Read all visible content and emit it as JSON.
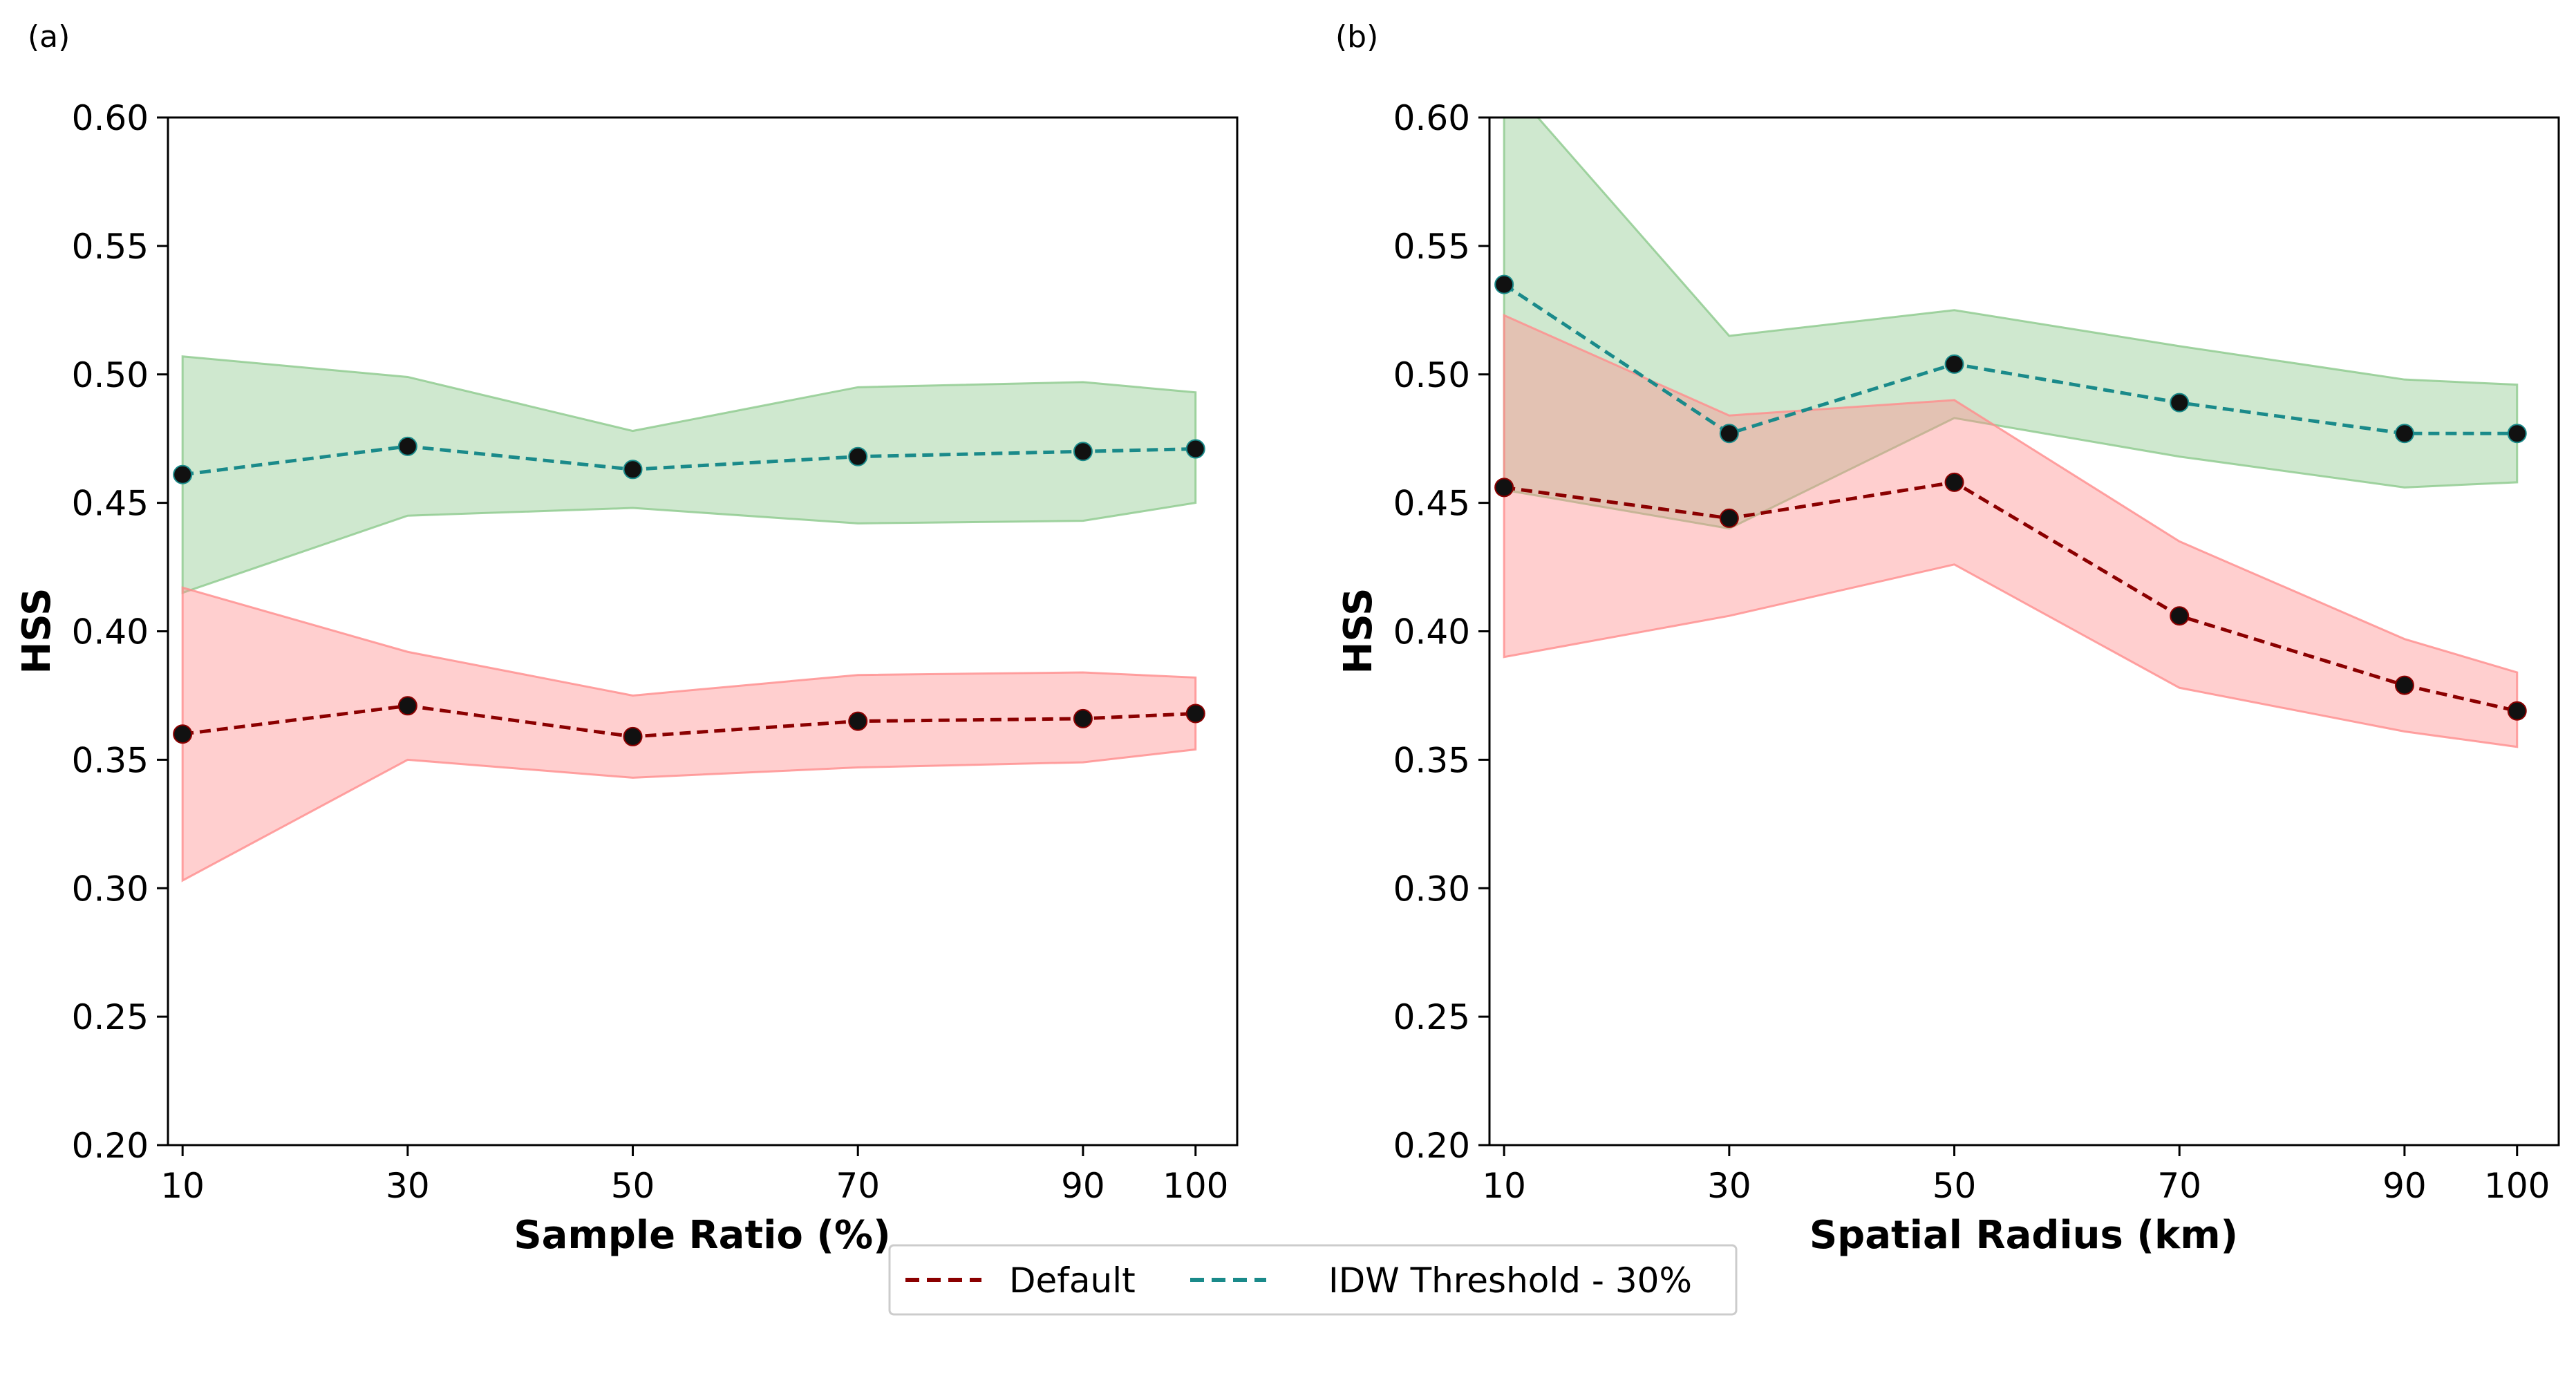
{
  "colors": {
    "default_line": "#8b0000",
    "default_band": "#ff8c8c",
    "idw_line": "#1a8a8a",
    "idw_band": "#8cc98c",
    "overlap_band": "#c9b79a",
    "marker": "#111111"
  },
  "legend": {
    "items": [
      {
        "label": "Default",
        "color": "#8b0000"
      },
      {
        "label": "IDW Threshold - 30%",
        "color": "#1a8a8a"
      }
    ]
  },
  "chart_data": [
    {
      "panel_label": "(a)",
      "type": "line",
      "xlabel": "Sample Ratio (%)",
      "ylabel": "HSS",
      "x_categories": [
        "10",
        "30",
        "50",
        "70",
        "90",
        "100"
      ],
      "x_numeric": [
        10,
        30,
        50,
        70,
        90,
        100
      ],
      "ylim": [
        0.2,
        0.6
      ],
      "y_ticks": [
        "0.20",
        "0.25",
        "0.30",
        "0.35",
        "0.40",
        "0.45",
        "0.50",
        "0.55",
        "0.60"
      ],
      "series": [
        {
          "name": "Default",
          "values": [
            0.36,
            0.371,
            0.359,
            0.365,
            0.366,
            0.368
          ],
          "lower": [
            0.303,
            0.35,
            0.343,
            0.347,
            0.349,
            0.354
          ],
          "upper": [
            0.417,
            0.392,
            0.375,
            0.383,
            0.384,
            0.382
          ]
        },
        {
          "name": "IDW Threshold - 30%",
          "values": [
            0.461,
            0.472,
            0.463,
            0.468,
            0.47,
            0.471
          ],
          "lower": [
            0.415,
            0.445,
            0.448,
            0.442,
            0.443,
            0.45
          ],
          "upper": [
            0.507,
            0.499,
            0.478,
            0.495,
            0.497,
            0.493
          ]
        }
      ]
    },
    {
      "panel_label": "(b)",
      "type": "line",
      "xlabel": "Spatial Radius (km)",
      "ylabel": "HSS",
      "x_categories": [
        "10",
        "30",
        "50",
        "70",
        "90",
        "100"
      ],
      "x_numeric": [
        10,
        30,
        50,
        70,
        90,
        100
      ],
      "ylim": [
        0.2,
        0.6
      ],
      "y_ticks": [
        "0.20",
        "0.25",
        "0.30",
        "0.35",
        "0.40",
        "0.45",
        "0.50",
        "0.55",
        "0.60"
      ],
      "series": [
        {
          "name": "Default",
          "values": [
            0.456,
            0.444,
            0.458,
            0.406,
            0.379,
            0.369
          ],
          "lower": [
            0.39,
            0.406,
            0.426,
            0.378,
            0.361,
            0.355
          ],
          "upper": [
            0.523,
            0.484,
            0.49,
            0.435,
            0.397,
            0.384
          ]
        },
        {
          "name": "IDW Threshold - 30%",
          "values": [
            0.535,
            0.477,
            0.504,
            0.489,
            0.477,
            0.477
          ],
          "lower": [
            0.455,
            0.44,
            0.483,
            0.468,
            0.456,
            0.458
          ],
          "upper": [
            0.615,
            0.515,
            0.525,
            0.511,
            0.498,
            0.496
          ]
        }
      ]
    }
  ]
}
